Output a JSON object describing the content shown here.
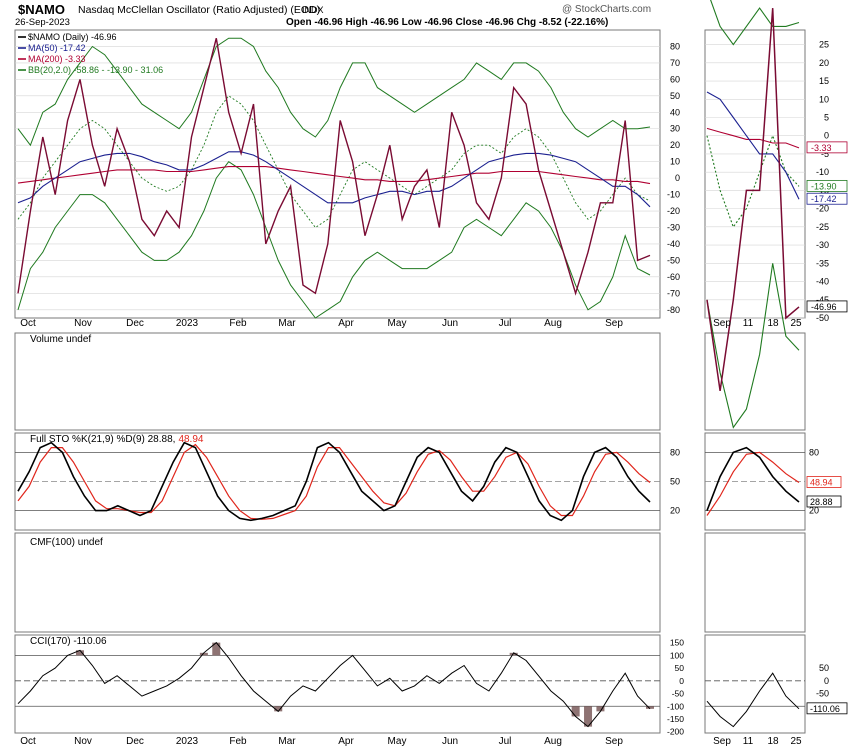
{
  "header": {
    "symbol": "$NAMO",
    "description": "Nasdaq McClellan Oscillator (Ratio Adjusted) (EOD)",
    "exchange": "INDX",
    "date": "26-Sep-2023",
    "ohlc_text": "Open -46.96  High -46.96  Low -46.96  Close -46.96  Chg -8.52 (-22.16%)",
    "watermark": "@ StockCharts.com"
  },
  "colors": {
    "price": "#7a0b33",
    "price_up": "#000000",
    "ma50": "#1c2190",
    "ma200": "#b00032",
    "bb": "#207a20",
    "bb_mid": "#207a20",
    "stoch_k": "#000000",
    "stoch_d": "#e0261c",
    "cci_line": "#000000",
    "cci_fill": "#7a5a5a",
    "grid": "#d6d6d6",
    "frame": "#7a7a7a"
  },
  "legend_main": [
    {
      "label": "$NAMO (Daily) -46.96",
      "color": "#000000",
      "style": "line"
    },
    {
      "label": "MA(50) -17.42",
      "color": "#1c2190",
      "style": "line"
    },
    {
      "label": "MA(200) -3.33",
      "color": "#b00032",
      "style": "line"
    },
    {
      "label": "BB(20,2.0) -58.86 - -13.90 - 31.06",
      "color": "#207a20",
      "style": "line"
    }
  ],
  "panel_titles": {
    "volume": "Volume undef",
    "sto_prefix": "Full STO %K(21,9) %D(9) 28.88,",
    "sto_d_value": "48.94",
    "cmf": "CMF(100) undef",
    "cci": "CCI(170) -110.06"
  },
  "x_labels_main": [
    "Oct",
    "Nov",
    "Dec",
    "2023",
    "Feb",
    "Mar",
    "Apr",
    "May",
    "Jun",
    "Jul",
    "Aug",
    "Sep"
  ],
  "x_labels_right": [
    "Sep",
    "11",
    "18",
    "25"
  ],
  "chart_data": [
    {
      "type": "line",
      "title": "$NAMO Nasdaq McClellan Oscillator (Ratio Adjusted)",
      "x": [
        "2022-10-03",
        "2022-10-10",
        "2022-10-17",
        "2022-10-24",
        "2022-10-31",
        "2022-11-07",
        "2022-11-14",
        "2022-11-21",
        "2022-11-28",
        "2022-12-05",
        "2022-12-12",
        "2022-12-19",
        "2022-12-27",
        "2023-01-03",
        "2023-01-09",
        "2023-01-17",
        "2023-01-23",
        "2023-01-30",
        "2023-02-06",
        "2023-02-13",
        "2023-02-21",
        "2023-02-27",
        "2023-03-06",
        "2023-03-13",
        "2023-03-20",
        "2023-03-27",
        "2023-04-03",
        "2023-04-10",
        "2023-04-17",
        "2023-04-24",
        "2023-05-01",
        "2023-05-08",
        "2023-05-15",
        "2023-05-22",
        "2023-05-30",
        "2023-06-05",
        "2023-06-12",
        "2023-06-20",
        "2023-06-26",
        "2023-07-03",
        "2023-07-10",
        "2023-07-17",
        "2023-07-24",
        "2023-07-31",
        "2023-08-07",
        "2023-08-14",
        "2023-08-21",
        "2023-08-28",
        "2023-09-05",
        "2023-09-11",
        "2023-09-18",
        "2023-09-26"
      ],
      "y_ticks": [
        80,
        70,
        60,
        50,
        40,
        30,
        20,
        10,
        0,
        -10,
        -20,
        -30,
        -40,
        -50,
        -60,
        -70,
        -80
      ],
      "ylim": [
        -85,
        90
      ],
      "series": [
        {
          "name": "$NAMO (Daily)",
          "values": [
            -70,
            -20,
            25,
            -10,
            35,
            60,
            20,
            -5,
            30,
            10,
            -25,
            -35,
            -20,
            -30,
            25,
            55,
            85,
            40,
            15,
            45,
            -40,
            -20,
            -5,
            -65,
            -70,
            -40,
            35,
            10,
            -35,
            -10,
            20,
            -25,
            -5,
            5,
            -30,
            40,
            20,
            -15,
            -25,
            0,
            55,
            45,
            5,
            -20,
            -45,
            -70,
            -45,
            -15,
            -15,
            35,
            -50,
            -46.96
          ]
        },
        {
          "name": "MA(50)",
          "values": [
            -15,
            -12,
            -5,
            0,
            5,
            10,
            12,
            14,
            15,
            15,
            13,
            10,
            8,
            5,
            5,
            8,
            12,
            16,
            16,
            14,
            10,
            5,
            0,
            -5,
            -10,
            -15,
            -15,
            -15,
            -12,
            -10,
            -8,
            -8,
            -10,
            -8,
            -8,
            -5,
            0,
            5,
            10,
            12,
            14,
            15,
            15,
            14,
            12,
            10,
            5,
            0,
            -5,
            -5,
            -10,
            -17.42
          ]
        },
        {
          "name": "MA(200)",
          "values": [
            -3,
            -2,
            -1,
            0,
            1,
            2,
            3,
            4,
            5,
            5,
            5,
            5,
            4,
            4,
            4,
            5,
            6,
            7,
            7,
            7,
            7,
            6,
            5,
            4,
            3,
            2,
            1,
            0,
            -1,
            -1,
            -2,
            -2,
            -2,
            -1,
            0,
            1,
            2,
            3,
            3,
            4,
            4,
            4,
            4,
            3,
            2,
            1,
            0,
            -1,
            -1,
            -2,
            -2,
            -3.33
          ]
        },
        {
          "name": "BB upper",
          "values": [
            30,
            20,
            40,
            45,
            60,
            70,
            80,
            75,
            65,
            55,
            45,
            40,
            35,
            30,
            40,
            60,
            80,
            85,
            85,
            80,
            65,
            55,
            40,
            30,
            25,
            35,
            55,
            70,
            70,
            55,
            50,
            45,
            40,
            45,
            50,
            55,
            60,
            70,
            65,
            60,
            70,
            70,
            65,
            55,
            40,
            30,
            25,
            30,
            35,
            30,
            30,
            31.06
          ]
        },
        {
          "name": "BB middle",
          "values": [
            -25,
            -15,
            0,
            10,
            20,
            30,
            35,
            30,
            20,
            10,
            0,
            -5,
            -8,
            -5,
            5,
            20,
            40,
            50,
            45,
            35,
            20,
            5,
            -10,
            -20,
            -30,
            -25,
            -10,
            5,
            10,
            5,
            0,
            -5,
            -10,
            -5,
            0,
            5,
            15,
            20,
            20,
            15,
            25,
            30,
            25,
            15,
            0,
            -15,
            -25,
            -20,
            -10,
            0,
            -10,
            -13.9
          ]
        },
        {
          "name": "BB lower",
          "values": [
            -80,
            -55,
            -45,
            -30,
            -20,
            -10,
            -10,
            -15,
            -25,
            -35,
            -45,
            -50,
            -50,
            -45,
            -35,
            -20,
            0,
            10,
            5,
            -10,
            -30,
            -50,
            -65,
            -75,
            -85,
            -80,
            -75,
            -60,
            -50,
            -45,
            -50,
            -55,
            -55,
            -55,
            -50,
            -45,
            -30,
            -25,
            -30,
            -35,
            -25,
            -15,
            -20,
            -30,
            -45,
            -65,
            -80,
            -75,
            -60,
            -35,
            -55,
            -58.86
          ]
        }
      ],
      "current_labels": [
        {
          "text": "-3.33",
          "value": -3.33,
          "color": "#b00032"
        },
        {
          "text": "-13.90",
          "value": -13.9,
          "color": "#207a20"
        },
        {
          "text": "-17.42",
          "value": -17.42,
          "color": "#1c2190"
        },
        {
          "text": "-46.96",
          "value": -46.96,
          "color": "#000000"
        }
      ],
      "right_y_ticks": [
        25,
        20,
        15,
        10,
        5,
        0,
        -5,
        -10,
        -15,
        -20,
        -25,
        -30,
        -35,
        -40,
        -45,
        -50
      ],
      "right_ylim": [
        -50,
        29
      ]
    },
    {
      "type": "line",
      "title": "Full STO %K(21,9) %D(9)",
      "y_ticks": [
        80,
        50,
        20
      ],
      "ylim": [
        0,
        100
      ],
      "series": [
        {
          "name": "%K",
          "values": [
            40,
            60,
            85,
            90,
            80,
            55,
            35,
            20,
            20,
            25,
            20,
            15,
            20,
            45,
            70,
            90,
            85,
            60,
            35,
            20,
            12,
            10,
            12,
            15,
            20,
            25,
            50,
            85,
            90,
            80,
            60,
            40,
            30,
            20,
            25,
            50,
            75,
            85,
            80,
            60,
            40,
            30,
            45,
            70,
            85,
            80,
            55,
            30,
            15,
            10,
            20,
            55,
            80,
            85,
            75,
            55,
            40,
            28.88
          ]
        },
        {
          "name": "%D",
          "values": [
            30,
            45,
            70,
            85,
            85,
            70,
            50,
            30,
            22,
            22,
            20,
            18,
            18,
            30,
            55,
            80,
            88,
            75,
            55,
            35,
            20,
            12,
            11,
            12,
            16,
            20,
            35,
            65,
            85,
            85,
            70,
            55,
            40,
            28,
            25,
            38,
            60,
            78,
            82,
            72,
            55,
            40,
            40,
            55,
            75,
            80,
            68,
            45,
            25,
            15,
            15,
            35,
            60,
            78,
            80,
            70,
            58,
            48.94
          ]
        }
      ],
      "current_labels": [
        {
          "text": "48.94",
          "value": 48.94,
          "color": "#e0261c"
        },
        {
          "text": "28.88",
          "value": 28.88,
          "color": "#000000"
        }
      ]
    },
    {
      "type": "area",
      "title": "CCI(170)",
      "y_ticks": [
        150,
        100,
        50,
        0,
        -50,
        -100,
        -150,
        -200
      ],
      "ylim": [
        -205,
        180
      ],
      "series": [
        {
          "name": "CCI",
          "values": [
            -90,
            -40,
            20,
            50,
            100,
            120,
            60,
            -10,
            20,
            -20,
            -60,
            -40,
            -20,
            10,
            50,
            110,
            150,
            90,
            20,
            -40,
            -80,
            -120,
            -60,
            -20,
            -40,
            10,
            60,
            100,
            40,
            -20,
            10,
            -40,
            -20,
            20,
            -10,
            30,
            60,
            -10,
            -40,
            30,
            110,
            80,
            20,
            -40,
            -80,
            -140,
            -180,
            -120,
            -40,
            30,
            -60,
            -110.06
          ]
        }
      ],
      "current_labels": [
        {
          "text": "-110.06",
          "value": -110.06,
          "color": "#000000"
        }
      ],
      "right_y_ticks": [
        50,
        0,
        -50,
        -100
      ]
    }
  ]
}
